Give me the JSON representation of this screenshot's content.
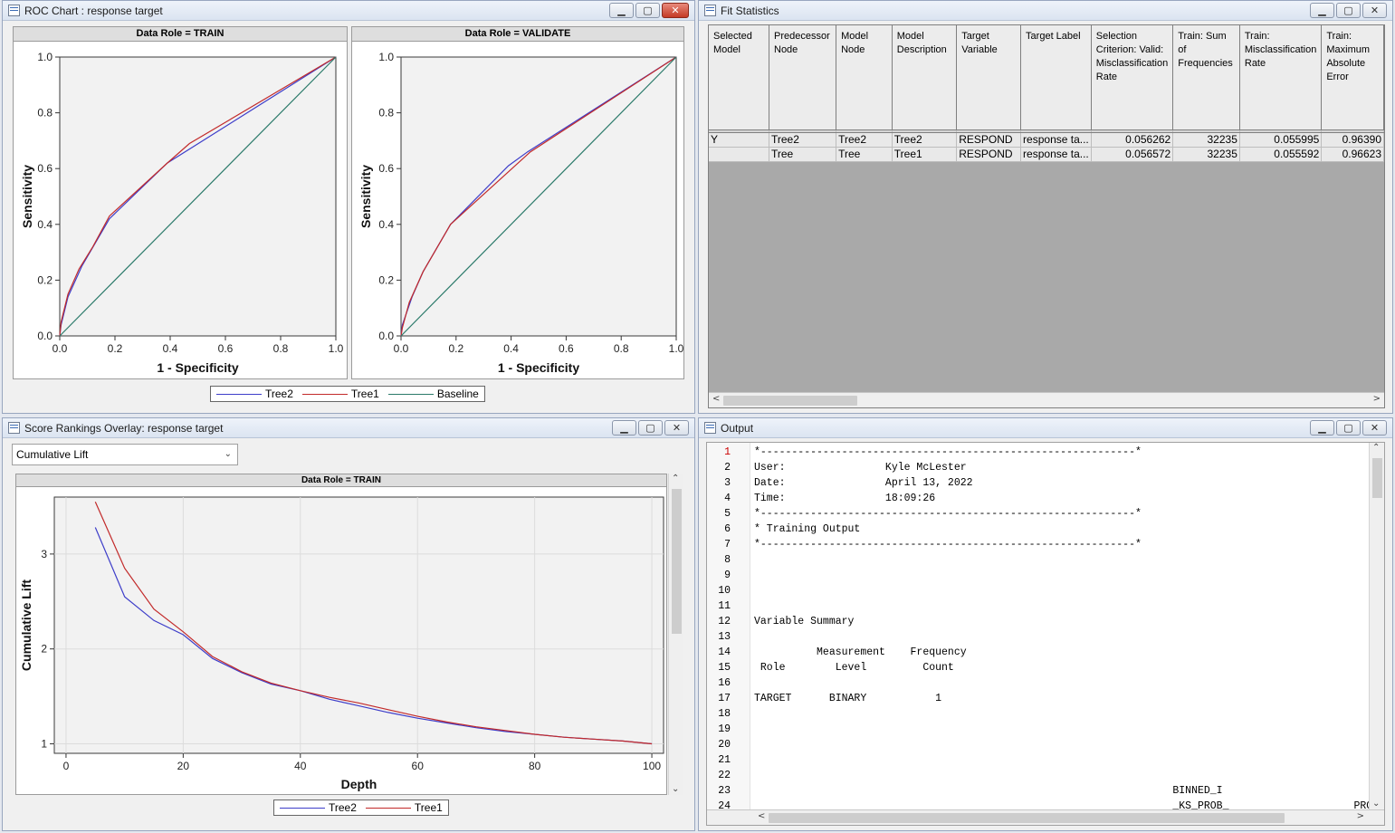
{
  "roc_window": {
    "title": "ROC Chart : response target",
    "legend": [
      {
        "label": "Tree2",
        "color": "#3d3dc9"
      },
      {
        "label": "Tree1",
        "color": "#c22a2a"
      },
      {
        "label": "Baseline",
        "color": "#2b7a6a"
      }
    ]
  },
  "fit_window": {
    "title": "Fit Statistics",
    "columns": [
      "Selected Model",
      "Predecessor Node",
      "Model Node",
      "Model Description",
      "Target Variable",
      "Target Label",
      "Selection Criterion: Valid: Misclassification Rate",
      "Train: Sum of Frequencies",
      "Train: Misclassification Rate",
      "Train: Maximum Absolute Error"
    ],
    "rows": [
      [
        "Y",
        "Tree2",
        "Tree2",
        "Tree2",
        "RESPOND",
        "response ta...",
        "0.056262",
        "32235",
        "0.055995",
        "0.96390"
      ],
      [
        "",
        "Tree",
        "Tree",
        "Tree1",
        "RESPOND",
        "response ta...",
        "0.056572",
        "32235",
        "0.055592",
        "0.96623"
      ]
    ]
  },
  "score_window": {
    "title": "Score Rankings Overlay: response target",
    "dropdown_value": "Cumulative Lift",
    "legend": [
      {
        "label": "Tree2",
        "color": "#3d3dc9"
      },
      {
        "label": "Tree1",
        "color": "#c22a2a"
      }
    ]
  },
  "output_window": {
    "title": "Output",
    "lines": [
      {
        "n": "1",
        "text": "*------------------------------------------------------------*"
      },
      {
        "n": "2",
        "text": "User:                Kyle McLester"
      },
      {
        "n": "3",
        "text": "Date:                April 13, 2022"
      },
      {
        "n": "4",
        "text": "Time:                18:09:26"
      },
      {
        "n": "5",
        "text": "*------------------------------------------------------------*"
      },
      {
        "n": "6",
        "text": "* Training Output"
      },
      {
        "n": "7",
        "text": "*------------------------------------------------------------*"
      },
      {
        "n": "8",
        "text": ""
      },
      {
        "n": "9",
        "text": ""
      },
      {
        "n": "10",
        "text": ""
      },
      {
        "n": "11",
        "text": ""
      },
      {
        "n": "12",
        "text": "Variable Summary"
      },
      {
        "n": "13",
        "text": ""
      },
      {
        "n": "14",
        "text": "          Measurement    Frequency"
      },
      {
        "n": "15",
        "text": " Role        Level         Count"
      },
      {
        "n": "16",
        "text": ""
      },
      {
        "n": "17",
        "text": "TARGET      BINARY           1"
      },
      {
        "n": "18",
        "text": ""
      },
      {
        "n": "19",
        "text": ""
      },
      {
        "n": "20",
        "text": ""
      },
      {
        "n": "21",
        "text": ""
      },
      {
        "n": "22",
        "text": ""
      },
      {
        "n": "23",
        "text": "                                                                   BINNED_I"
      },
      {
        "n": "24",
        "text": "                                                                   _KS_PROB_                    PROB_"
      }
    ]
  },
  "chart_data": [
    {
      "type": "line",
      "title": "Data Role = TRAIN",
      "xlabel": "1 - Specificity",
      "ylabel": "Sensitivity",
      "xlim": [
        0,
        1
      ],
      "ylim": [
        0,
        1
      ],
      "x_ticks": [
        "0.0",
        "0.2",
        "0.4",
        "0.6",
        "0.8",
        "1.0"
      ],
      "y_ticks": [
        "0.0",
        "0.2",
        "0.4",
        "0.6",
        "0.8",
        "1.0"
      ],
      "grid": false,
      "series": [
        {
          "name": "Tree2",
          "color": "#3d3dc9",
          "points": [
            [
              0,
              0
            ],
            [
              0.005,
              0.04
            ],
            [
              0.03,
              0.14
            ],
            [
              0.08,
              0.25
            ],
            [
              0.18,
              0.42
            ],
            [
              0.39,
              0.62
            ],
            [
              1,
              1
            ]
          ]
        },
        {
          "name": "Tree1",
          "color": "#c22a2a",
          "points": [
            [
              0,
              0
            ],
            [
              0.005,
              0.05
            ],
            [
              0.03,
              0.15
            ],
            [
              0.07,
              0.24
            ],
            [
              0.12,
              0.32
            ],
            [
              0.18,
              0.43
            ],
            [
              0.39,
              0.62
            ],
            [
              0.47,
              0.69
            ],
            [
              1,
              1
            ]
          ]
        },
        {
          "name": "Baseline",
          "color": "#2b7a6a",
          "points": [
            [
              0,
              0
            ],
            [
              1,
              1
            ]
          ]
        }
      ]
    },
    {
      "type": "line",
      "title": "Data Role = VALIDATE",
      "xlabel": "1 - Specificity",
      "ylabel": "Sensitivity",
      "xlim": [
        0,
        1
      ],
      "ylim": [
        0,
        1
      ],
      "x_ticks": [
        "0.0",
        "0.2",
        "0.4",
        "0.6",
        "0.8",
        "1.0"
      ],
      "y_ticks": [
        "0.0",
        "0.2",
        "0.4",
        "0.6",
        "0.8",
        "1.0"
      ],
      "grid": false,
      "series": [
        {
          "name": "Tree2",
          "color": "#3d3dc9",
          "points": [
            [
              0,
              0
            ],
            [
              0.005,
              0.04
            ],
            [
              0.04,
              0.14
            ],
            [
              0.08,
              0.23
            ],
            [
              0.18,
              0.4
            ],
            [
              0.39,
              0.61
            ],
            [
              0.46,
              0.66
            ],
            [
              1,
              1
            ]
          ]
        },
        {
          "name": "Tree1",
          "color": "#c22a2a",
          "points": [
            [
              0,
              0
            ],
            [
              0.005,
              0.03
            ],
            [
              0.03,
              0.12
            ],
            [
              0.08,
              0.23
            ],
            [
              0.18,
              0.4
            ],
            [
              0.47,
              0.66
            ],
            [
              1,
              1
            ]
          ]
        },
        {
          "name": "Baseline",
          "color": "#2b7a6a",
          "points": [
            [
              0,
              0
            ],
            [
              1,
              1
            ]
          ]
        }
      ]
    },
    {
      "type": "line",
      "title": "Data Role = TRAIN",
      "xlabel": "Depth",
      "ylabel": "Cumulative Lift",
      "xlim": [
        -2,
        102
      ],
      "ylim": [
        0.9,
        3.6
      ],
      "x_ticks": [
        0,
        20,
        40,
        60,
        80,
        100
      ],
      "y_ticks": [
        1,
        2,
        3
      ],
      "grid": true,
      "series": [
        {
          "name": "Tree2",
          "color": "#3d3dc9",
          "points": [
            [
              5,
              3.28
            ],
            [
              10,
              2.55
            ],
            [
              15,
              2.3
            ],
            [
              20,
              2.15
            ],
            [
              25,
              1.9
            ],
            [
              30,
              1.75
            ],
            [
              35,
              1.63
            ],
            [
              40,
              1.56
            ],
            [
              45,
              1.47
            ],
            [
              50,
              1.4
            ],
            [
              55,
              1.33
            ],
            [
              60,
              1.27
            ],
            [
              65,
              1.22
            ],
            [
              70,
              1.17
            ],
            [
              75,
              1.13
            ],
            [
              80,
              1.1
            ],
            [
              85,
              1.07
            ],
            [
              90,
              1.05
            ],
            [
              95,
              1.03
            ],
            [
              100,
              1.0
            ]
          ]
        },
        {
          "name": "Tree1",
          "color": "#c22a2a",
          "points": [
            [
              5,
              3.55
            ],
            [
              10,
              2.85
            ],
            [
              15,
              2.42
            ],
            [
              20,
              2.18
            ],
            [
              25,
              1.92
            ],
            [
              30,
              1.76
            ],
            [
              35,
              1.64
            ],
            [
              40,
              1.56
            ],
            [
              45,
              1.49
            ],
            [
              50,
              1.43
            ],
            [
              55,
              1.36
            ],
            [
              60,
              1.29
            ],
            [
              65,
              1.23
            ],
            [
              70,
              1.18
            ],
            [
              75,
              1.14
            ],
            [
              80,
              1.1
            ],
            [
              85,
              1.07
            ],
            [
              90,
              1.05
            ],
            [
              95,
              1.03
            ],
            [
              100,
              1.0
            ]
          ]
        }
      ]
    }
  ]
}
